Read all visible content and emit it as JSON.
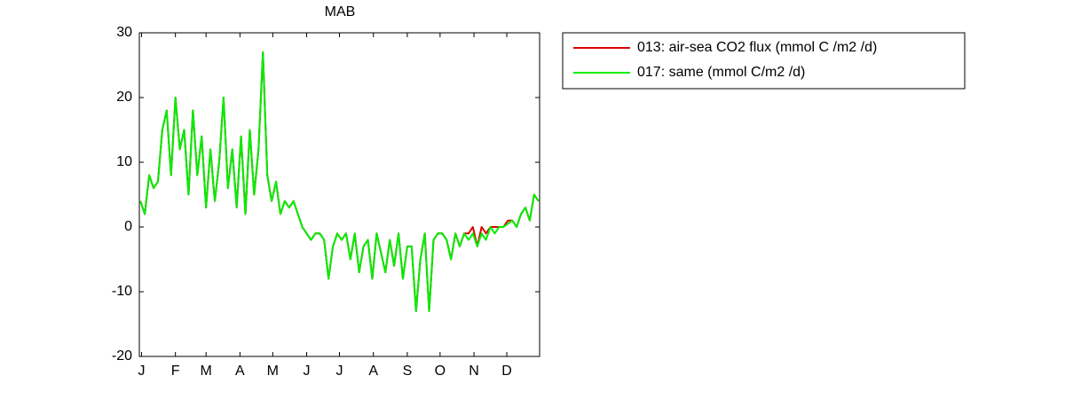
{
  "chart_data": {
    "type": "line",
    "title": "MAB",
    "x": [
      0,
      4,
      8,
      12,
      16,
      20,
      24,
      28,
      32,
      36,
      40,
      44,
      48,
      52,
      56,
      60,
      64,
      68,
      72,
      76,
      80,
      84,
      88,
      92,
      96,
      100,
      104,
      108,
      112,
      116,
      120,
      124,
      128,
      132,
      136,
      140,
      144,
      148,
      152,
      156,
      160,
      164,
      168,
      172,
      176,
      180,
      184,
      188,
      192,
      196,
      200,
      204,
      208,
      212,
      216,
      220,
      224,
      228,
      232,
      236,
      240,
      244,
      248,
      252,
      256,
      260,
      264,
      268,
      272,
      276,
      280,
      284,
      288,
      292,
      296,
      300,
      304,
      308,
      312,
      316,
      320,
      324,
      328,
      332,
      336,
      340,
      344,
      348,
      352,
      356,
      360,
      364
    ],
    "series": [
      {
        "name": "013: air-sea CO2 flux (mmol C /m2 /d)",
        "color": "#e00000",
        "values": [
          4,
          2,
          8,
          6,
          7,
          15,
          18,
          8,
          20,
          12,
          15,
          5,
          18,
          8,
          14,
          3,
          12,
          4,
          10,
          20,
          6,
          12,
          3,
          14,
          2,
          15,
          5,
          12,
          27,
          8,
          4,
          7,
          2,
          4,
          3,
          4,
          2,
          0,
          -1,
          -2,
          -1,
          -1,
          -2,
          -8,
          -3,
          -1,
          -2,
          -1,
          -5,
          -1,
          -7,
          -3,
          -2,
          -8,
          -1,
          -4,
          -7,
          -2,
          -6,
          -1,
          -8,
          -3,
          -3,
          -13,
          -5,
          -1,
          -13,
          -2,
          -1,
          -1,
          -2,
          -5,
          -1,
          -3,
          -1,
          -1,
          0,
          -3,
          0,
          -1,
          0,
          0,
          0,
          0,
          1,
          1,
          0,
          2,
          3,
          1,
          5,
          4
        ]
      },
      {
        "name": "017: same (mmol C/m2 /d)",
        "color": "#00ee00",
        "values": [
          4,
          2,
          8,
          6,
          7,
          15,
          18,
          8,
          20,
          12,
          15,
          5,
          18,
          8,
          14,
          3,
          12,
          4,
          10,
          20,
          6,
          12,
          3,
          14,
          2,
          15,
          5,
          12,
          27,
          8,
          4,
          7,
          2,
          4,
          3,
          4,
          2,
          0,
          -1,
          -2,
          -1,
          -1,
          -2,
          -8,
          -3,
          -1,
          -2,
          -1,
          -5,
          -1,
          -7,
          -3,
          -2,
          -8,
          -1,
          -4,
          -7,
          -2,
          -6,
          -1,
          -8,
          -3,
          -3,
          -13,
          -5,
          -1,
          -13,
          -2,
          -1,
          -1,
          -2,
          -5,
          -1,
          -3,
          -1,
          -2,
          -1,
          -3,
          -1,
          -2,
          0,
          -1,
          0,
          0,
          0.5,
          1,
          0,
          2,
          3,
          1,
          5,
          4
        ]
      }
    ],
    "xlim": [
      -1,
      365
    ],
    "xticks": [
      {
        "value": 1,
        "label": "J"
      },
      {
        "value": 32,
        "label": "F"
      },
      {
        "value": 60,
        "label": "M"
      },
      {
        "value": 91,
        "label": "A"
      },
      {
        "value": 121,
        "label": "M"
      },
      {
        "value": 152,
        "label": "J"
      },
      {
        "value": 182,
        "label": "J"
      },
      {
        "value": 213,
        "label": "A"
      },
      {
        "value": 244,
        "label": "S"
      },
      {
        "value": 274,
        "label": "O"
      },
      {
        "value": 305,
        "label": "N"
      },
      {
        "value": 335,
        "label": "D"
      }
    ],
    "ylim": [
      -20,
      30
    ],
    "yticks": [
      -20,
      -10,
      0,
      10,
      20,
      30
    ],
    "legend": "outside-top-right"
  }
}
